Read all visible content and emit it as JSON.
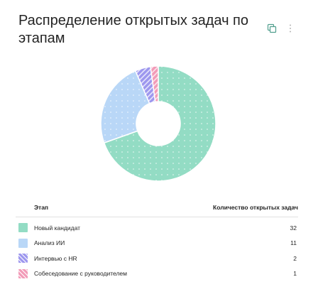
{
  "header": {
    "title": "Распределение открытых задач по этапам"
  },
  "toolbar": {
    "copy_icon": "copy-icon",
    "more_icon": "more-vertical-icon"
  },
  "table": {
    "col_stage": "Этап",
    "col_count": "Количество открытых задач",
    "rows": [
      {
        "label": "Новый кандидат",
        "value": "32"
      },
      {
        "label": "Анализ ИИ",
        "value": "11"
      },
      {
        "label": "Интервью с HR",
        "value": "2"
      },
      {
        "label": "Собеседование с руководителем",
        "value": "1"
      }
    ]
  },
  "chart_data": {
    "type": "pie",
    "variant": "donut",
    "categories": [
      "Новый кандидат",
      "Анализ ИИ",
      "Интервью с HR",
      "Собеседование с руководителем"
    ],
    "values": [
      32,
      11,
      2,
      1
    ],
    "colors": [
      "#93dcc4",
      "#b9d7f7",
      "#9d97ee",
      "#f29bb8"
    ],
    "patterns": [
      "dots",
      "dots",
      "diagonal-stripes",
      "diagonal-stripes"
    ],
    "legend": "table-below"
  }
}
